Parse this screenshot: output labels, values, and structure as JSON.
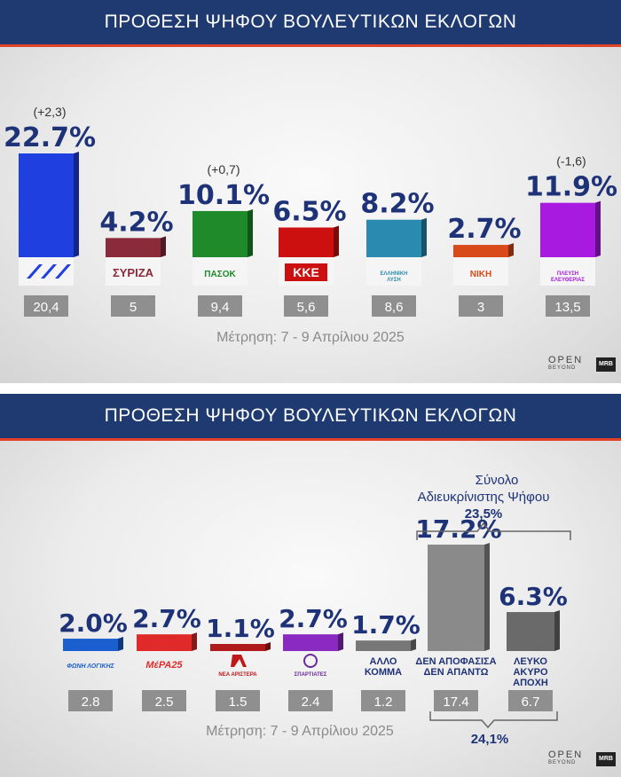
{
  "title_top": "ΠΡΟΘΕΣΗ ΨΗΦΟΥ ΒΟΥΛΕΥΤΙΚΩΝ ΕΚΛΟΓΩΝ",
  "title_bottom": "ΠΡΟΘΕΣΗ ΨΗΦΟΥ ΒΟΥΛΕΥΤΙΚΩΝ ΕΚΛΟΓΩΝ",
  "date_top": "Μέτρηση: 7 - 9 Απρίλιου 2025",
  "date_bottom": "Μέτρηση: 7 - 9 Απρίλιου 2025",
  "brand": {
    "name": "OPEN",
    "sub": "BEYOND",
    "mrb": "MRB"
  },
  "annotation": {
    "line1": "Σύνολο",
    "line2": "Αδιευκρίνιστης  Ψήφου",
    "total": "23,5%",
    "sum_bottom": "24,1%"
  },
  "chart_data": [
    {
      "type": "bar",
      "title": "ΠΡΟΘΕΣΗ ΨΗΦΟΥ ΒΟΥΛΕΥΤΙΚΩΝ ΕΚΛΟΓΩΝ",
      "categories": [
        "ΝΔ",
        "ΣΥΡΙΖΑ",
        "ΠΑΣΟΚ",
        "ΚΚΕ",
        "ΕΛΛΗΝΙΚΗ ΛΥΣΗ",
        "ΝΙΚΗ",
        "ΠΛΕΥΣΗ ΕΛΕΥΘΕΡΙΑΣ"
      ],
      "values": [
        22.7,
        4.2,
        10.1,
        6.5,
        8.2,
        2.7,
        11.9
      ],
      "value_labels": [
        "22.7%",
        "4.2%",
        "10.1%",
        "6.5%",
        "8.2%",
        "2.7%",
        "11.9%"
      ],
      "changes": [
        "(+2,3)",
        "",
        "(+0,7)",
        "",
        "",
        "",
        "(-1,6)"
      ],
      "previous": [
        "20,4",
        "5",
        "9,4",
        "5,6",
        "8,6",
        "3",
        "13,5"
      ],
      "logo_texts": [
        "",
        "ΣΥΡΙΖΑ",
        "ΠΑΣΟΚ",
        "ΚΚΕ",
        "ΕΛΛΗΝΙΚΗ ΛΥΣΗ",
        "ΝΙΚΗ",
        "ΠΛΕΥΣΗ ΕΛΕΥΘΕΡΙΑΣ"
      ],
      "colors": [
        "#1f3fe0",
        "#8a2a3a",
        "#1e8a2a",
        "#cc1010",
        "#2a8ab0",
        "#d84a1a",
        "#a81adf"
      ]
    },
    {
      "type": "bar",
      "title": "ΠΡΟΘΕΣΗ ΨΗΦΟΥ ΒΟΥΛΕΥΤΙΚΩΝ ΕΚΛΟΓΩΝ",
      "categories": [
        "ΦΩΝΗ ΛΟΓΙΚΗΣ",
        "ΜέΡΑ25",
        "ΝΕΑ ΑΡΙΣΤΕΡΑ",
        "ΣΠΑΡΤΙΑΤΕΣ",
        "ΑΛΛΟ ΚΟΜΜΑ",
        "ΔΕΝ ΑΠΟΦΑΣΙΣΑ ΔΕΝ ΑΠΑΝΤΩ",
        "ΛΕΥΚΟ ΑΚΥΡΟ ΑΠΟΧΗ"
      ],
      "values": [
        2.0,
        2.7,
        1.1,
        2.7,
        1.7,
        17.2,
        6.3
      ],
      "value_labels": [
        "2.0%",
        "2.7%",
        "1.1%",
        "2.7%",
        "1.7%",
        "17.2%",
        "6.3%"
      ],
      "previous": [
        "2.8",
        "2.5",
        "1.5",
        "2.4",
        "1.2",
        "17.4",
        "6.7"
      ],
      "logo_texts": [
        "ΦΩΝΗ ΛΟΓΙΚΗΣ",
        "ΜέΡΑ25",
        "ΝΕΑ ΑΡΙΣΤΕΡΑ",
        "ΣΠΑΡΤΙΑΤΕΣ",
        "ΑΛΛΟ ΚΟΜΜΑ",
        "ΔΕΝ ΑΠΟΦΑΣΙΣΑ ΔΕΝ ΑΠΑΝΤΩ",
        "ΛΕΥΚΟ ΑΚΥΡΟ ΑΠΟΧΗ"
      ],
      "colors": [
        "#1a5fd0",
        "#e02a2a",
        "#b01a1a",
        "#8a2ac0",
        "#777777",
        "#8a8a8a",
        "#6a6a6a"
      ]
    }
  ]
}
